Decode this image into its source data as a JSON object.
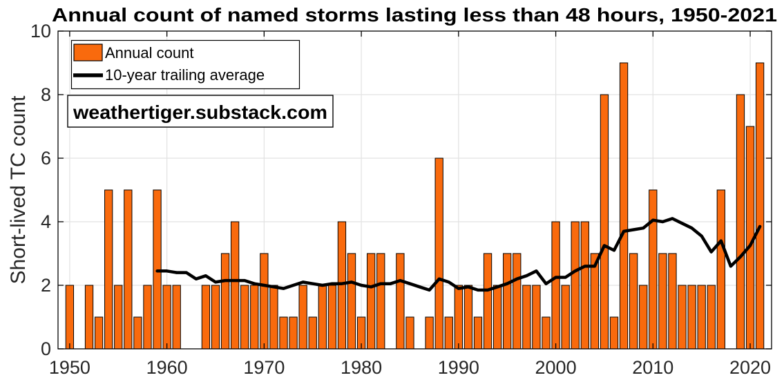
{
  "chart_data": {
    "type": "bar",
    "title": "Annual count of named storms lasting less than 48 hours, 1950-2021",
    "xlabel": "",
    "ylabel": "Short-lived TC count",
    "xlim": [
      1948.8,
      2022.2
    ],
    "ylim": [
      0,
      10
    ],
    "xticks": [
      1950,
      1960,
      1970,
      1980,
      1990,
      2000,
      2010,
      2020
    ],
    "yticks": [
      0,
      2,
      4,
      6,
      8,
      10
    ],
    "grid": true,
    "legend_position": "top-left-inside",
    "categories": [
      1950,
      1951,
      1952,
      1953,
      1954,
      1955,
      1956,
      1957,
      1958,
      1959,
      1960,
      1961,
      1962,
      1963,
      1964,
      1965,
      1966,
      1967,
      1968,
      1969,
      1970,
      1971,
      1972,
      1973,
      1974,
      1975,
      1976,
      1977,
      1978,
      1979,
      1980,
      1981,
      1982,
      1983,
      1984,
      1985,
      1986,
      1987,
      1988,
      1989,
      1990,
      1991,
      1992,
      1993,
      1994,
      1995,
      1996,
      1997,
      1998,
      1999,
      2000,
      2001,
      2002,
      2003,
      2004,
      2005,
      2006,
      2007,
      2008,
      2009,
      2010,
      2011,
      2012,
      2013,
      2014,
      2015,
      2016,
      2017,
      2018,
      2019,
      2020,
      2021
    ],
    "series": [
      {
        "name": "Annual count",
        "type": "bar",
        "values": [
          2,
          0,
          2,
          1,
          5,
          2,
          5,
          1,
          2,
          5,
          2,
          2,
          0,
          0,
          2,
          2,
          3,
          4,
          2,
          2,
          3,
          2,
          1,
          1,
          2,
          1,
          2,
          2,
          4,
          3,
          1,
          3,
          3,
          0,
          3,
          1,
          0,
          1,
          6,
          1,
          2,
          2,
          1,
          3,
          2,
          3,
          3,
          2,
          2,
          1,
          4,
          2,
          4,
          4,
          3,
          8,
          1,
          9,
          3,
          2,
          5,
          3,
          3,
          2,
          2,
          2,
          2,
          5,
          0,
          8,
          7,
          9
        ]
      },
      {
        "name": "10-year trailing average",
        "type": "line",
        "years": [
          1959,
          1960,
          1961,
          1962,
          1963,
          1964,
          1965,
          1966,
          1967,
          1968,
          1969,
          1970,
          1971,
          1972,
          1973,
          1974,
          1975,
          1976,
          1977,
          1978,
          1979,
          1980,
          1981,
          1982,
          1983,
          1984,
          1985,
          1986,
          1987,
          1988,
          1989,
          1990,
          1991,
          1992,
          1993,
          1994,
          1995,
          1996,
          1997,
          1998,
          1999,
          2000,
          2001,
          2002,
          2003,
          2004,
          2005,
          2006,
          2007,
          2008,
          2009,
          2010,
          2011,
          2012,
          2013,
          2014,
          2015,
          2016,
          2017,
          2018,
          2019,
          2020,
          2021
        ],
        "values": [
          2.45,
          2.45,
          2.4,
          2.4,
          2.2,
          2.3,
          2.1,
          2.15,
          2.15,
          2.15,
          2.05,
          2.0,
          1.95,
          1.9,
          2.0,
          2.1,
          2.05,
          2.0,
          2.05,
          2.05,
          2.1,
          2.0,
          1.95,
          2.05,
          2.05,
          2.15,
          2.05,
          1.95,
          1.85,
          2.2,
          2.1,
          1.9,
          1.95,
          1.85,
          1.85,
          1.95,
          2.05,
          2.2,
          2.3,
          2.45,
          2.05,
          2.25,
          2.25,
          2.45,
          2.6,
          2.6,
          3.25,
          3.1,
          3.7,
          3.75,
          3.8,
          4.05,
          4.0,
          4.1,
          3.95,
          3.8,
          3.55,
          3.05,
          3.4,
          2.6,
          2.9,
          3.25,
          3.85
        ]
      }
    ]
  },
  "legend": {
    "items": [
      {
        "label": "Annual count",
        "swatch": "bar-swatch"
      },
      {
        "label": "10-year trailing average",
        "swatch": "line-swatch"
      }
    ]
  },
  "watermark": {
    "text": "weathertiger.substack.com"
  },
  "colors": {
    "bar_fill": "#F96A0D",
    "bar_edge": "#000000",
    "line": "#000000",
    "grid": "#E2E2E2",
    "axis": "#000000",
    "tick_label": "#262626",
    "title": "#000000",
    "background": "#FFFFFF"
  }
}
